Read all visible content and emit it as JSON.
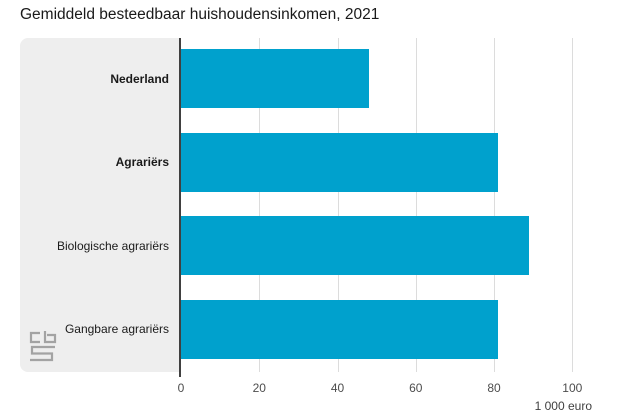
{
  "title": "Gemiddeld besteedbaar huishoudensinkomen, 2021",
  "chart_data": {
    "type": "bar",
    "orientation": "horizontal",
    "title": "Gemiddeld besteedbaar huishoudensinkomen, 2021",
    "rows": [
      {
        "label": "Nederland",
        "value": 48,
        "bold": true
      },
      {
        "label": "Agrariërs",
        "value": 81,
        "bold": true
      },
      {
        "label": "Biologische agrariërs",
        "value": 89,
        "bold": false
      },
      {
        "label": "Gangbare agrariërs",
        "value": 81,
        "bold": false
      }
    ],
    "xlabel": "1 000 euro",
    "xlim": [
      0,
      100
    ],
    "xticks": [
      0,
      20,
      40,
      60,
      80,
      100
    ],
    "grid": true,
    "legend": "none"
  },
  "colors": {
    "bar": "#00a1cd",
    "panel": "#eeeeee",
    "grid": "#dcdcdc",
    "axis": "#404040",
    "logo": "#a3a3a3"
  },
  "branding": {
    "logo_name": "cbs-logo"
  }
}
